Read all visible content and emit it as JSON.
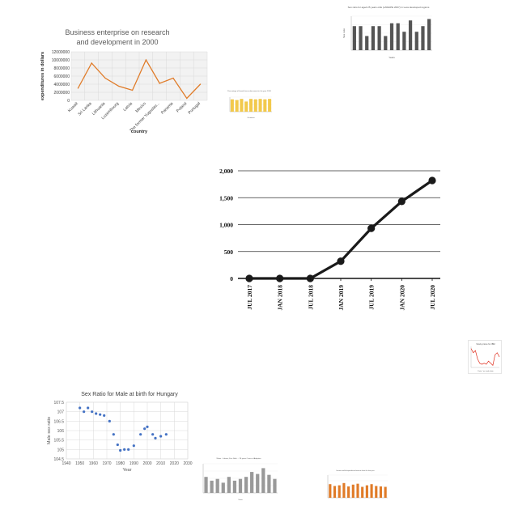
{
  "chart_data": [
    {
      "type": "line",
      "title": "Business enterprise on research and development in 2000",
      "xlabel": "country",
      "ylabel": "expenditures in dollars",
      "categories": [
        "Kuwait",
        "Sri Lanka",
        "Lithuania",
        "Luxembourg",
        "Latvia",
        "Mexico",
        "The former Yugoslav...",
        "Panama",
        "Poland",
        "Portugal"
      ],
      "values": [
        3000000,
        9200000,
        5500000,
        3500000,
        2500000,
        10000000,
        4200000,
        5500000,
        500000,
        4000000
      ],
      "ylim": [
        0,
        12000000
      ],
      "yticks": [
        "0",
        "2000000",
        "4000000",
        "6000000",
        "8000000",
        "10000000",
        "12000000"
      ],
      "grid": true,
      "color": "#e07b28"
    },
    {
      "type": "bar",
      "title": "Sex ratio for aged 25 years olds (LAWAPE 2007) in Less developed regions",
      "xlabel": "Years",
      "ylabel": "Sex ratio",
      "values": [
        0.85,
        0.85,
        0.5,
        0.85,
        0.85,
        0.5,
        0.95,
        0.95,
        0.65,
        1.05,
        0.65,
        0.85,
        1.1
      ],
      "ylim": [
        0,
        1.2
      ],
      "color": "#555555"
    },
    {
      "type": "bar",
      "title": "Percentage of female law enforcement in the year 2010",
      "xlabel": "Countries",
      "ylabel": "",
      "values": [
        85,
        80,
        88,
        70,
        88,
        85,
        88,
        85,
        88
      ],
      "ylim": [
        0,
        100
      ],
      "color": "#f2c94c"
    },
    {
      "type": "line",
      "title": "",
      "xlabel": "",
      "ylabel": "",
      "categories": [
        "JUL 2017",
        "JAN 2018",
        "JUL 2018",
        "JAN 2019",
        "JUL 2019",
        "JAN 2020",
        "JUL 2020"
      ],
      "values": [
        0,
        0,
        0,
        320,
        930,
        1430,
        1820
      ],
      "ylim": [
        0,
        2000
      ],
      "yticks": [
        "0",
        "500",
        "1,000",
        "1,500",
        "2,000"
      ],
      "grid": true,
      "color": "#1a1a1a"
    },
    {
      "type": "line",
      "title": "Stock prices for IBM",
      "xlabel": "Date / as trade date",
      "ylabel": "",
      "values": [
        9,
        7,
        8,
        4,
        2,
        1.5,
        2,
        1.5,
        3,
        2,
        1,
        6,
        7,
        5
      ],
      "ylim": [
        0,
        10
      ],
      "color": "#e03020"
    },
    {
      "type": "scatter",
      "title": "Sex Ratio for Male at birth for Hungary",
      "xlabel": "Year",
      "ylabel": "Male sex ratio",
      "x": [
        1950,
        1953,
        1956,
        1959,
        1962,
        1965,
        1968,
        1972,
        1975,
        1978,
        1980,
        1983,
        1986,
        1990,
        1995,
        1998,
        2000,
        2004,
        2006,
        2010,
        2014
      ],
      "y": [
        107.2,
        107.0,
        107.2,
        107.0,
        106.9,
        106.85,
        106.8,
        106.5,
        105.8,
        105.25,
        104.95,
        105.0,
        105.0,
        105.2,
        105.8,
        106.1,
        106.2,
        105.8,
        105.6,
        105.7,
        105.8
      ],
      "xlim": [
        1940,
        2030
      ],
      "ylim": [
        104.5,
        107.5
      ],
      "xticks": [
        "1940",
        "1950",
        "1960",
        "1970",
        "1980",
        "1990",
        "2000",
        "2010",
        "2020",
        "2030"
      ],
      "yticks": [
        "104.5",
        "105",
        "105.5",
        "106",
        "106.5",
        "107",
        "107.5"
      ],
      "grid": true,
      "color": "#4472c4"
    },
    {
      "type": "bar",
      "title": "Water - Labour, Fire: Both ... 28 years Cases of Adoption",
      "xlabel": "Years",
      "ylabel": "",
      "values": [
        55,
        42,
        48,
        35,
        55,
        42,
        48,
        55,
        72,
        65,
        85,
        62,
        48
      ],
      "ylim": [
        0,
        100
      ],
      "color": "#999999"
    },
    {
      "type": "bar",
      "title": "Internet traffic/expenditure/revenue from the last year",
      "xlabel": "",
      "ylabel": "",
      "values": [
        60,
        52,
        55,
        65,
        50,
        58,
        62,
        48,
        55,
        60,
        52,
        50,
        48
      ],
      "ylim": [
        0,
        100
      ],
      "color": "#e07b28"
    }
  ]
}
